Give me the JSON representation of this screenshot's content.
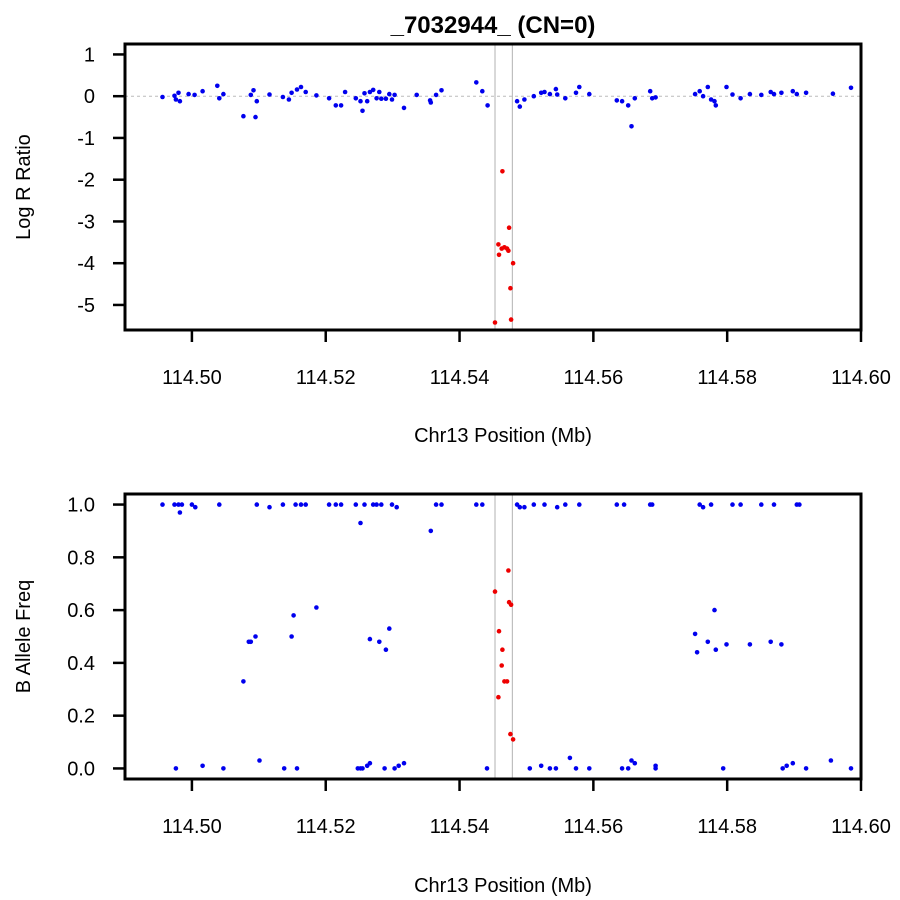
{
  "title": "_7032944_ (CN=0)",
  "colors": {
    "normal": "#0000ee",
    "highlight": "#ee0000",
    "region": "#bfbfbf"
  },
  "chart_data": [
    {
      "type": "scatter",
      "xlabel": "Chr13 Position (Mb)",
      "ylabel": "Log R Ratio",
      "xlim": [
        114.49,
        114.6
      ],
      "ylim": [
        -5.6,
        1.25
      ],
      "xticks": [
        "114.50",
        "114.52",
        "114.54",
        "114.56",
        "114.58",
        "114.60"
      ],
      "yticks": [
        "1",
        "0",
        "-1",
        "-2",
        "-3",
        "-4",
        "-5"
      ],
      "reference_line_y": 0,
      "region": [
        114.5453,
        114.5479
      ],
      "series": [
        {
          "color": "#0000ee",
          "points": [
            [
              114.4956,
              -0.02
            ],
            [
              114.4974,
              0.01
            ],
            [
              114.4976,
              -0.08
            ],
            [
              114.498,
              0.08
            ],
            [
              114.4982,
              -0.12
            ],
            [
              114.4995,
              0.05
            ],
            [
              114.5004,
              0.03
            ],
            [
              114.5016,
              0.12
            ],
            [
              114.5038,
              0.25
            ],
            [
              114.5041,
              -0.05
            ],
            [
              114.5047,
              0.05
            ],
            [
              114.5077,
              -0.48
            ],
            [
              114.5088,
              0.03
            ],
            [
              114.5092,
              0.14
            ],
            [
              114.5095,
              -0.5
            ],
            [
              114.5097,
              -0.12
            ],
            [
              114.5116,
              0.04
            ],
            [
              114.5136,
              -0.02
            ],
            [
              114.5145,
              -0.08
            ],
            [
              114.5149,
              0.08
            ],
            [
              114.5157,
              0.16
            ],
            [
              114.5163,
              0.22
            ],
            [
              114.517,
              0.1
            ],
            [
              114.5186,
              0.02
            ],
            [
              114.5205,
              -0.05
            ],
            [
              114.5215,
              -0.22
            ],
            [
              114.5223,
              -0.22
            ],
            [
              114.5229,
              0.1
            ],
            [
              114.5245,
              -0.05
            ],
            [
              114.5252,
              -0.12
            ],
            [
              114.5255,
              -0.35
            ],
            [
              114.5258,
              0.07
            ],
            [
              114.5262,
              -0.12
            ],
            [
              114.5266,
              0.1
            ],
            [
              114.5271,
              0.15
            ],
            [
              114.5276,
              -0.05
            ],
            [
              114.528,
              0.1
            ],
            [
              114.5283,
              -0.06
            ],
            [
              114.529,
              -0.06
            ],
            [
              114.5295,
              0.05
            ],
            [
              114.5299,
              -0.08
            ],
            [
              114.5303,
              0.03
            ],
            [
              114.5317,
              -0.28
            ],
            [
              114.5336,
              0.03
            ],
            [
              114.5356,
              -0.1
            ],
            [
              114.5357,
              -0.15
            ],
            [
              114.5365,
              0.03
            ],
            [
              114.5373,
              0.14
            ],
            [
              114.5425,
              0.33
            ],
            [
              114.5434,
              0.12
            ],
            [
              114.5442,
              -0.22
            ],
            [
              114.5486,
              -0.12
            ],
            [
              114.549,
              -0.25
            ],
            [
              114.5497,
              -0.08
            ],
            [
              114.5511,
              0.0
            ],
            [
              114.5522,
              0.08
            ],
            [
              114.5527,
              0.1
            ],
            [
              114.5535,
              0.05
            ],
            [
              114.5544,
              0.17
            ],
            [
              114.5546,
              0.04
            ],
            [
              114.5558,
              -0.05
            ],
            [
              114.5574,
              0.08
            ],
            [
              114.5579,
              0.22
            ],
            [
              114.5594,
              0.05
            ],
            [
              114.5635,
              -0.1
            ],
            [
              114.5643,
              -0.12
            ],
            [
              114.5652,
              -0.22
            ],
            [
              114.5657,
              -0.72
            ],
            [
              114.5662,
              -0.05
            ],
            [
              114.5685,
              0.12
            ],
            [
              114.5688,
              -0.05
            ],
            [
              114.5693,
              -0.03
            ],
            [
              114.5752,
              0.05
            ],
            [
              114.5759,
              0.12
            ],
            [
              114.5764,
              0.0
            ],
            [
              114.5771,
              0.22
            ],
            [
              114.5776,
              -0.08
            ],
            [
              114.5781,
              -0.12
            ],
            [
              114.5783,
              -0.22
            ],
            [
              114.5799,
              0.22
            ],
            [
              114.5808,
              0.04
            ],
            [
              114.582,
              -0.05
            ],
            [
              114.5834,
              0.05
            ],
            [
              114.5851,
              0.03
            ],
            [
              114.5865,
              0.1
            ],
            [
              114.587,
              0.05
            ],
            [
              114.5881,
              0.08
            ],
            [
              114.5898,
              0.12
            ],
            [
              114.5904,
              0.05
            ],
            [
              114.5918,
              0.08
            ],
            [
              114.5958,
              0.06
            ],
            [
              114.5985,
              0.2
            ]
          ]
        },
        {
          "color": "#ee0000",
          "points": [
            [
              114.5453,
              -5.42
            ],
            [
              114.5458,
              -3.55
            ],
            [
              114.5459,
              -3.8
            ],
            [
              114.5463,
              -3.65
            ],
            [
              114.5464,
              -1.8
            ],
            [
              114.5467,
              -3.62
            ],
            [
              114.5471,
              -3.65
            ],
            [
              114.5473,
              -3.7
            ],
            [
              114.5474,
              -3.15
            ],
            [
              114.5476,
              -4.6
            ],
            [
              114.5477,
              -5.35
            ],
            [
              114.548,
              -4.0
            ]
          ]
        }
      ]
    },
    {
      "type": "scatter",
      "xlabel": "Chr13 Position (Mb)",
      "ylabel": "B Allele Freq",
      "xlim": [
        114.49,
        114.6
      ],
      "ylim": [
        -0.04,
        1.04
      ],
      "xticks": [
        "114.50",
        "114.52",
        "114.54",
        "114.56",
        "114.58",
        "114.60"
      ],
      "yticks": [
        "1.0",
        "0.8",
        "0.6",
        "0.4",
        "0.2",
        "0.0"
      ],
      "region": [
        114.5453,
        114.5479
      ],
      "series": [
        {
          "color": "#0000ee",
          "points": [
            [
              114.4956,
              1.0
            ],
            [
              114.4974,
              1.0
            ],
            [
              114.4976,
              0.0
            ],
            [
              114.498,
              1.0
            ],
            [
              114.4982,
              0.97
            ],
            [
              114.4985,
              1.0
            ],
            [
              114.5,
              1.0
            ],
            [
              114.5005,
              0.99
            ],
            [
              114.5016,
              0.01
            ],
            [
              114.5041,
              1.0
            ],
            [
              114.5047,
              0.0
            ],
            [
              114.5077,
              0.33
            ],
            [
              114.5085,
              0.48
            ],
            [
              114.5088,
              0.48
            ],
            [
              114.5095,
              0.5
            ],
            [
              114.5097,
              1.0
            ],
            [
              114.5101,
              0.03
            ],
            [
              114.5116,
              0.99
            ],
            [
              114.5136,
              1.0
            ],
            [
              114.5138,
              0.0
            ],
            [
              114.5149,
              0.5
            ],
            [
              114.5152,
              0.58
            ],
            [
              114.5155,
              1.0
            ],
            [
              114.5157,
              0.0
            ],
            [
              114.5163,
              1.0
            ],
            [
              114.517,
              1.0
            ],
            [
              114.5186,
              0.61
            ],
            [
              114.5205,
              1.0
            ],
            [
              114.5215,
              1.0
            ],
            [
              114.5223,
              1.0
            ],
            [
              114.5245,
              1.0
            ],
            [
              114.5248,
              0.0
            ],
            [
              114.5252,
              0.93
            ],
            [
              114.5252,
              0.0
            ],
            [
              114.5255,
              0.0
            ],
            [
              114.5258,
              1.0
            ],
            [
              114.5262,
              0.01
            ],
            [
              114.5266,
              0.49
            ],
            [
              114.5266,
              0.02
            ],
            [
              114.5271,
              1.0
            ],
            [
              114.5276,
              1.0
            ],
            [
              114.528,
              0.48
            ],
            [
              114.5283,
              1.0
            ],
            [
              114.5288,
              0.0
            ],
            [
              114.529,
              0.45
            ],
            [
              114.5295,
              0.53
            ],
            [
              114.5299,
              1.0
            ],
            [
              114.5303,
              0.0
            ],
            [
              114.5306,
              0.99
            ],
            [
              114.5309,
              0.01
            ],
            [
              114.5317,
              0.02
            ],
            [
              114.5357,
              0.9
            ],
            [
              114.5365,
              1.0
            ],
            [
              114.5373,
              1.0
            ],
            [
              114.5425,
              1.0
            ],
            [
              114.5434,
              1.0
            ],
            [
              114.5441,
              0.0
            ],
            [
              114.5486,
              1.0
            ],
            [
              114.549,
              0.99
            ],
            [
              114.5497,
              0.99
            ],
            [
              114.5505,
              0.0
            ],
            [
              114.5511,
              1.0
            ],
            [
              114.5522,
              0.01
            ],
            [
              114.5527,
              1.0
            ],
            [
              114.5535,
              0.0
            ],
            [
              114.5544,
              0.0
            ],
            [
              114.5546,
              0.99
            ],
            [
              114.5558,
              1.0
            ],
            [
              114.5565,
              0.04
            ],
            [
              114.5574,
              0.0
            ],
            [
              114.5579,
              1.0
            ],
            [
              114.5594,
              0.0
            ],
            [
              114.5635,
              1.0
            ],
            [
              114.5643,
              0.0
            ],
            [
              114.5646,
              1.0
            ],
            [
              114.5652,
              0.0
            ],
            [
              114.5657,
              0.03
            ],
            [
              114.5662,
              0.02
            ],
            [
              114.5685,
              1.0
            ],
            [
              114.5688,
              1.0
            ],
            [
              114.5693,
              0.0
            ],
            [
              114.5693,
              0.01
            ],
            [
              114.5752,
              0.51
            ],
            [
              114.5755,
              0.44
            ],
            [
              114.5759,
              1.0
            ],
            [
              114.5764,
              0.99
            ],
            [
              114.5771,
              0.48
            ],
            [
              114.5776,
              1.0
            ],
            [
              114.5781,
              0.6
            ],
            [
              114.5783,
              0.45
            ],
            [
              114.5794,
              0.0
            ],
            [
              114.5799,
              0.47
            ],
            [
              114.5808,
              1.0
            ],
            [
              114.582,
              1.0
            ],
            [
              114.5834,
              0.47
            ],
            [
              114.5851,
              1.0
            ],
            [
              114.5865,
              0.48
            ],
            [
              114.587,
              1.0
            ],
            [
              114.5881,
              0.47
            ],
            [
              114.5883,
              0.0
            ],
            [
              114.5889,
              0.01
            ],
            [
              114.5898,
              0.02
            ],
            [
              114.5904,
              1.0
            ],
            [
              114.5908,
              1.0
            ],
            [
              114.5918,
              0.0
            ],
            [
              114.5955,
              0.03
            ],
            [
              114.5985,
              0.0
            ]
          ]
        },
        {
          "color": "#ee0000",
          "points": [
            [
              114.5453,
              0.67
            ],
            [
              114.5458,
              0.27
            ],
            [
              114.5459,
              0.52
            ],
            [
              114.5463,
              0.39
            ],
            [
              114.5464,
              0.45
            ],
            [
              114.5467,
              0.33
            ],
            [
              114.5471,
              0.33
            ],
            [
              114.5473,
              0.75
            ],
            [
              114.5474,
              0.63
            ],
            [
              114.5476,
              0.13
            ],
            [
              114.5477,
              0.62
            ],
            [
              114.548,
              0.11
            ]
          ]
        }
      ]
    }
  ]
}
